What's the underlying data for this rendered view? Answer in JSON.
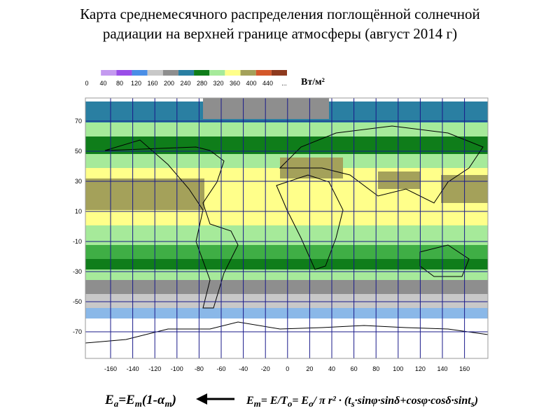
{
  "title": {
    "lines": [
      "Карта среднемесячного распределения поглощённой солнечной",
      "радиации на верхней границе атмосферы (август 2014 г)"
    ]
  },
  "legend": {
    "colors": [
      "#ffffff",
      "#c49af0",
      "#9a4ee8",
      "#4a8ee6",
      "#c8c8c8",
      "#8e8e8e",
      "#2a7fa2",
      "#0f7d1a",
      "#a6ea9a",
      "#ffff8a",
      "#a4a15a",
      "#d4582a",
      "#8e3a1e"
    ],
    "labels": [
      "0",
      "40",
      "80",
      "120",
      "160",
      "200",
      "240",
      "280",
      "320",
      "360",
      "400",
      "440",
      "..."
    ],
    "unit": "Вт/м²"
  },
  "map": {
    "lat_labels": [
      "70",
      "50",
      "30",
      "10",
      "-10",
      "-30",
      "-50",
      "-70"
    ],
    "lon_labels": [
      "-160",
      "-140",
      "-120",
      "-100",
      "-80",
      "-60",
      "-40",
      "-20",
      "0",
      "20",
      "40",
      "60",
      "80",
      "100",
      "120",
      "140",
      "160"
    ]
  },
  "formula_left": [
    "E",
    "a",
    "=E",
    "m",
    "(1-α",
    "m",
    ")"
  ],
  "formula_right": [
    "E",
    "m",
    "= E/T",
    "o",
    "= E",
    "o",
    "/ π r² · (t",
    "s",
    "·sinφ·sinδ+cosφ·cosδ·sint",
    "s",
    ")"
  ]
}
